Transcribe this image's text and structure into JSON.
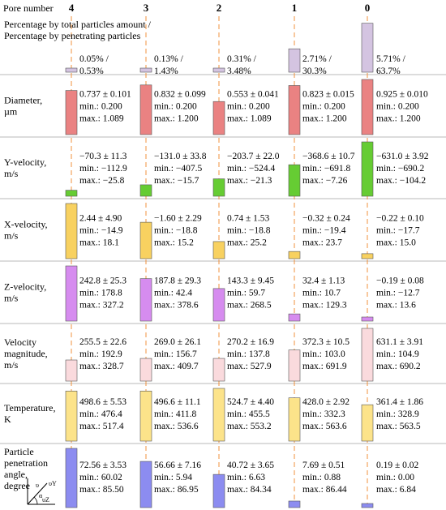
{
  "header": {
    "pore_number_label": "Pore number",
    "pores": [
      "4",
      "3",
      "2",
      "1",
      "0"
    ]
  },
  "colors": {
    "percentage": "#d4c4e1",
    "diameter": "#ea8282",
    "y_velocity": "#66cc33",
    "x_velocity": "#f8d160",
    "z_velocity": "#d68cef",
    "velocity_magnitude": "#fadadd",
    "temperature": "#fce38a",
    "penetration_angle": "#8c8cf0",
    "dashed_line": "#f0913c",
    "grid_line": "#a0a0a0"
  },
  "rows": [
    {
      "id": "percentage",
      "label_lines": [
        "Percentage by total particles amount /",
        "Percentage by penetrating particles"
      ],
      "bar_fractions": [
        0.01,
        0.02,
        0.05,
        0.43,
        0.9
      ],
      "values": [
        [
          "0.05% /",
          "0.53%"
        ],
        [
          "0.13% /",
          "1.43%"
        ],
        [
          "0.31% /",
          "3.48%"
        ],
        [
          "2.71% /",
          "30.3%"
        ],
        [
          "5.71% /",
          "63.7%"
        ]
      ]
    },
    {
      "id": "diameter",
      "label_lines": [
        "Diameter,",
        "µm"
      ],
      "bar_fractions": [
        0.8,
        0.9,
        0.6,
        0.89,
        1.0
      ],
      "values": [
        [
          "0.737 ± 0.101",
          "min.: 0.200",
          "max.: 1.089"
        ],
        [
          "0.832 ± 0.099",
          "min.: 0.200",
          "max.: 1.200"
        ],
        [
          "0.553 ± 0.041",
          "min.: 0.200",
          "max.: 1.089"
        ],
        [
          "0.823 ± 0.015",
          "min.: 0.200",
          "max.: 1.200"
        ],
        [
          "0.925 ± 0.010",
          "min.: 0.200",
          "max.: 1.200"
        ]
      ]
    },
    {
      "id": "y_velocity",
      "label_lines": [
        "Y-velocity,",
        "m/s"
      ],
      "bar_fractions": [
        0.11,
        0.21,
        0.32,
        0.58,
        1.0
      ],
      "values": [
        [
          "−70.3 ± 11.3",
          "min.: −112.9",
          "max.: −25.8"
        ],
        [
          "−131.0 ± 33.8",
          "min.: −407.5",
          "max.: −15.7"
        ],
        [
          "−203.7 ± 22.0",
          "min.: −524.4",
          "max.: −21.3"
        ],
        [
          "−368.6 ± 10.7",
          "min.: −691.8",
          "max.: −7.26"
        ],
        [
          "−631.0 ± 3.92",
          "min.: −690.2",
          "max.: −104.2"
        ]
      ]
    },
    {
      "id": "x_velocity",
      "label_lines": [
        "X-velocity,",
        "m/s"
      ],
      "bar_fractions": [
        1.0,
        0.66,
        0.31,
        0.13,
        0.09
      ],
      "values": [
        [
          "2.44 ± 4.90",
          "min.: −14.9",
          "max.: 18.1"
        ],
        [
          "−1.60 ± 2.29",
          "min.: −18.8",
          "max.: 15.2"
        ],
        [
          "0.74 ± 1.53",
          "min.: −18.8",
          "max.: 25.2"
        ],
        [
          "−0.32 ± 0.24",
          "min.: −19.4",
          "max.: 23.7"
        ],
        [
          "−0.22 ± 0.10",
          "min.: −17.7",
          "max.: 15.0"
        ]
      ]
    },
    {
      "id": "z_velocity",
      "label_lines": [
        "Z-velocity,",
        "m/s"
      ],
      "bar_fractions": [
        1.0,
        0.77,
        0.59,
        0.13,
        0.0
      ],
      "values": [
        [
          "242.8 ± 25.3",
          "min.: 178.8",
          "max.: 327.2"
        ],
        [
          "187.8 ± 29.3",
          "min.: 42.4",
          "max.: 378.6"
        ],
        [
          "143.3 ± 9.45",
          "min.: 59.7",
          "max.: 268.5"
        ],
        [
          "32.4 ± 1.13",
          "min.: 10.7",
          "max.: 129.3"
        ],
        [
          "−0.19 ± 0.08",
          "min.: −12.7",
          "max.: 13.6"
        ]
      ]
    },
    {
      "id": "velocity_magnitude",
      "label_lines": [
        "Velocity",
        "magnitude,",
        "m/s"
      ],
      "bar_fractions": [
        0.4,
        0.43,
        0.43,
        0.59,
        1.0
      ],
      "values": [
        [
          "255.5 ± 22.6",
          "min.: 192.9",
          "max.: 328.7"
        ],
        [
          "269.0 ± 26.1",
          "min.: 156.7",
          "max.: 409.7"
        ],
        [
          "270.2 ± 16.9",
          "min.: 137.8",
          "max.: 527.9"
        ],
        [
          "372.3 ± 10.5",
          "min.: 103.0",
          "max.: 691.9"
        ],
        [
          "631.1 ± 3.91",
          "min.: 104.9",
          "max.: 690.2"
        ]
      ]
    },
    {
      "id": "temperature",
      "label_lines": [
        "Temperature,",
        "K"
      ],
      "bar_fractions": [
        0.95,
        0.95,
        1.0,
        0.82,
        0.69
      ],
      "values": [
        [
          "498.6 ± 5.53",
          "min.: 476.4",
          "max.: 517.4"
        ],
        [
          "496.6 ± 11.1",
          "min.: 411.8",
          "max.: 536.6"
        ],
        [
          "524.7 ± 4.40",
          "min.: 455.5",
          "max.: 553.2"
        ],
        [
          "428.0 ± 2.92",
          "min.: 332.3",
          "max.: 563.6"
        ],
        [
          "361.4 ± 1.86",
          "min.: 328.9",
          "max.: 563.5"
        ]
      ]
    },
    {
      "id": "penetration_angle",
      "label_lines": [
        "Particle",
        "penetration",
        "angle,",
        "degree"
      ],
      "bar_fractions": [
        1.0,
        0.78,
        0.56,
        0.11,
        0.01
      ],
      "values": [
        [
          "72.56 ± 3.53",
          "min.: 60.02",
          "max.: 85.50"
        ],
        [
          "56.66 ± 7.16",
          "min.: 5.94",
          "max.: 86.95"
        ],
        [
          "40.72 ± 3.65",
          "min.: 6.63",
          "max.: 84.34"
        ],
        [
          "7.69 ± 0.51",
          "min.: 0.88",
          "max.: 86.44"
        ],
        [
          "0.19 ± 0.02",
          "min.: 0.00",
          "max.: 6.84"
        ]
      ]
    }
  ],
  "angle_icon": {
    "labels": [
      "υ",
      "υY",
      "υZ",
      "α"
    ]
  }
}
